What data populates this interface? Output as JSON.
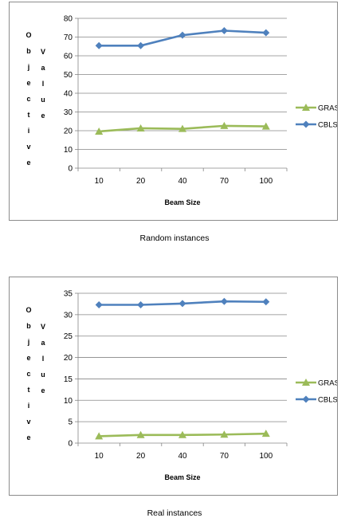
{
  "chart_data": [
    {
      "type": "line",
      "categories": [
        "10",
        "20",
        "40",
        "70",
        "100"
      ],
      "series": [
        {
          "name": "GRASP",
          "values": [
            19.6,
            21.3,
            21.0,
            22.6,
            22.3
          ],
          "color": "#9bbb59",
          "marker": "triangle"
        },
        {
          "name": "CBLS",
          "values": [
            65.4,
            65.4,
            71.0,
            73.4,
            72.3
          ],
          "color": "#4f81bd",
          "marker": "diamond"
        }
      ],
      "xlabel": "Beam Size",
      "ylabel": "Objective Value",
      "ylim": [
        0,
        80
      ],
      "yticks": [
        "0",
        "10",
        "20",
        "30",
        "40",
        "50",
        "60",
        "70",
        "80"
      ],
      "grid": true,
      "legend": "right"
    },
    {
      "type": "line",
      "categories": [
        "10",
        "20",
        "40",
        "70",
        "100"
      ],
      "series": [
        {
          "name": "GRASP",
          "values": [
            1.6,
            1.9,
            1.9,
            2.0,
            2.2
          ],
          "color": "#9bbb59",
          "marker": "triangle"
        },
        {
          "name": "CBLS",
          "values": [
            32.3,
            32.3,
            32.6,
            33.1,
            33.0
          ],
          "color": "#4f81bd",
          "marker": "diamond"
        }
      ],
      "xlabel": "Beam Size",
      "ylabel": "Objective Value",
      "ylim": [
        0,
        35
      ],
      "yticks": [
        "0",
        "5",
        "10",
        "15",
        "20",
        "25",
        "30",
        "35"
      ],
      "grid": true,
      "legend": "right"
    }
  ],
  "captions": [
    "Random instances",
    "Real instances"
  ]
}
